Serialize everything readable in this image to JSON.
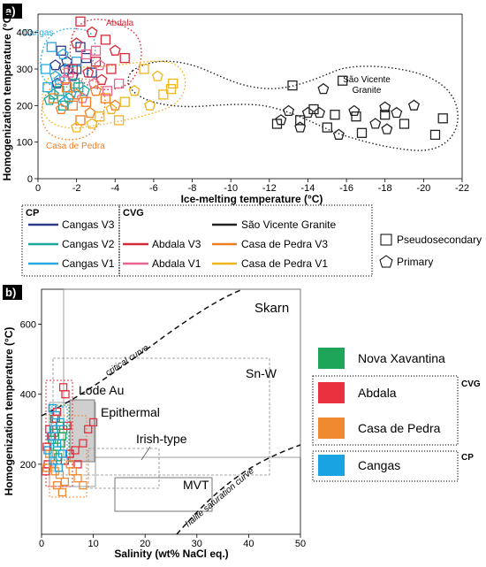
{
  "chart_data": [
    {
      "panel": "a)",
      "type": "scatter",
      "xlabel": "Ice-melting temperature (°C)",
      "ylabel": "Homogenization temperature (°C)",
      "xlim": [
        0,
        -22
      ],
      "ylim": [
        0,
        450
      ],
      "xticks": [
        "0",
        "-2",
        "-4",
        "-6",
        "-8",
        "-10",
        "-12",
        "-14",
        "-16",
        "-18",
        "-20",
        "-22"
      ],
      "yticks": [
        "0",
        "100",
        "200",
        "300",
        "400"
      ],
      "field_labels": {
        "cangas": "Cangas",
        "abdala": "Abdala",
        "casa": "Casa de Pedra",
        "svg": "São Vicente Granite"
      },
      "legend": {
        "cp_title": "CP",
        "cvg_title": "CVG",
        "cp_items": [
          "Cangas V3",
          "Cangas V2",
          "Cangas V1"
        ],
        "cvg_items": [
          "São Vicente Granite",
          "Abdala V3",
          "Casa de Pedra V3",
          "Abdala V1",
          "Casa de Pedra V1"
        ],
        "marker_items": [
          "Pseudosecondary",
          "Primary"
        ]
      },
      "series": [
        {
          "name": "Cangas V3",
          "color": "#2d3a8c",
          "marker": "mixed",
          "points": [
            [
              -1.2,
              350
            ],
            [
              -1.5,
              320
            ],
            [
              -2.0,
              300
            ],
            [
              -1.8,
              280
            ],
            [
              -2.5,
              330
            ],
            [
              -1.0,
              260
            ],
            [
              -2.2,
              360
            ],
            [
              -1.4,
              300
            ],
            [
              -2.8,
              290
            ],
            [
              -0.9,
              310
            ]
          ]
        },
        {
          "name": "Cangas V2",
          "color": "#17a89a",
          "marker": "mixed",
          "points": [
            [
              -1.1,
              240
            ],
            [
              -1.6,
              220
            ],
            [
              -2.1,
              250
            ],
            [
              -0.8,
              230
            ],
            [
              -1.9,
              260
            ],
            [
              -2.4,
              240
            ],
            [
              -1.3,
              200
            ],
            [
              -0.6,
              215
            ]
          ]
        },
        {
          "name": "Cangas V1",
          "color": "#29a9e0",
          "marker": "mixed",
          "points": [
            [
              -0.7,
              360
            ],
            [
              -1.3,
              340
            ],
            [
              -1.6,
              300
            ],
            [
              -0.9,
              280
            ],
            [
              -2.0,
              320
            ],
            [
              -1.1,
              270
            ],
            [
              -0.5,
              250
            ],
            [
              -1.7,
              230
            ],
            [
              -0.4,
              300
            ],
            [
              -1.4,
              210
            ]
          ]
        },
        {
          "name": "Abdala V3",
          "color": "#d62a3a",
          "marker": "mixed",
          "points": [
            [
              -2.2,
              430
            ],
            [
              -2.8,
              400
            ],
            [
              -3.5,
              380
            ],
            [
              -4.0,
              350
            ],
            [
              -3.0,
              320
            ],
            [
              -2.6,
              290
            ],
            [
              -3.8,
              300
            ],
            [
              -2.0,
              370
            ],
            [
              -4.5,
              330
            ],
            [
              -3.3,
              270
            ],
            [
              -1.8,
              300
            ]
          ]
        },
        {
          "name": "Abdala V1",
          "color": "#e8658f",
          "marker": "mixed",
          "points": [
            [
              -2.5,
              340
            ],
            [
              -3.2,
              310
            ],
            [
              -1.6,
              290
            ],
            [
              -2.9,
              260
            ],
            [
              -3.6,
              240
            ],
            [
              -2.3,
              220
            ],
            [
              -4.2,
              260
            ],
            [
              -1.4,
              270
            ],
            [
              -3.0,
              350
            ]
          ]
        },
        {
          "name": "Casa de Pedra V3",
          "color": "#ef7d22",
          "marker": "mixed",
          "points": [
            [
              -1.5,
              250
            ],
            [
              -2.0,
              230
            ],
            [
              -2.5,
              210
            ],
            [
              -3.0,
              240
            ],
            [
              -1.8,
              200
            ],
            [
              -2.7,
              180
            ],
            [
              -3.5,
              220
            ],
            [
              -1.2,
              190
            ],
            [
              -2.2,
              160
            ],
            [
              -4.0,
              200
            ],
            [
              -0.8,
              220
            ]
          ]
        },
        {
          "name": "Casa de Pedra V1",
          "color": "#f1b51c",
          "marker": "mixed",
          "points": [
            [
              -5.5,
              300
            ],
            [
              -6.2,
              280
            ],
            [
              -7.0,
              260
            ],
            [
              -5.0,
              240
            ],
            [
              -4.5,
              210
            ],
            [
              -3.8,
              190
            ],
            [
              -6.5,
              230
            ],
            [
              -2.8,
              150
            ],
            [
              -3.2,
              170
            ],
            [
              -5.8,
              200
            ],
            [
              -4.2,
              160
            ],
            [
              -2.0,
              140
            ],
            [
              -6.9,
              245
            ]
          ]
        },
        {
          "name": "São Vicente Granite",
          "color": "#222222",
          "marker": "mixed",
          "points": [
            [
              -13.2,
              255
            ],
            [
              -14.8,
              245
            ],
            [
              -15.8,
              268
            ],
            [
              -13.0,
              185
            ],
            [
              -13.6,
              160
            ],
            [
              -13.6,
              140
            ],
            [
              -14.3,
              190
            ],
            [
              -14.6,
              180
            ],
            [
              -15.4,
              175
            ],
            [
              -16.4,
              185
            ],
            [
              -16.5,
              170
            ],
            [
              -18.0,
              195
            ],
            [
              -18.0,
              175
            ],
            [
              -18.1,
              135
            ],
            [
              -19.0,
              150
            ],
            [
              -19.5,
              200
            ],
            [
              -21.0,
              165
            ],
            [
              -12.6,
              160
            ],
            [
              -12.4,
              150
            ],
            [
              -14.0,
              180
            ],
            [
              -15.0,
              140
            ],
            [
              -15.6,
              120
            ],
            [
              -16.8,
              125
            ],
            [
              -17.5,
              150
            ],
            [
              -20.6,
              120
            ],
            [
              -18.6,
              180
            ]
          ]
        }
      ]
    },
    {
      "panel": "b)",
      "type": "scatter",
      "xlabel": "Salinity (wt% NaCl eq.)",
      "ylabel": "Homogenization temperature (°C)",
      "xlim": [
        0,
        50
      ],
      "ylim": [
        0,
        700
      ],
      "xticks": [
        "0",
        "10",
        "20",
        "30",
        "40",
        "50"
      ],
      "yticks": [
        "200",
        "400",
        "600"
      ],
      "fields": {
        "skarn": "Skarn",
        "snw": "Sn-W",
        "lode": "Lode Au",
        "epithermal": "Epithermal",
        "irish": "Irish-type",
        "mvt": "MVT",
        "critical": "critical curve",
        "halite": "halite saturation curve"
      },
      "legend": {
        "items": [
          "Nova Xavantina",
          "Abdala",
          "Casa de Pedra",
          "Cangas"
        ],
        "cvg_title": "CVG",
        "cp_title": "CP",
        "colors": [
          "#1fa55a",
          "#e8303f",
          "#f08a30",
          "#19a3e2"
        ]
      },
      "series": [
        {
          "name": "Nova Xavantina",
          "color": "#1fa55a",
          "points": [
            [
              2.0,
              270
            ],
            [
              2.5,
              290
            ],
            [
              3.0,
              250
            ],
            [
              3.5,
              310
            ],
            [
              2.2,
              230
            ],
            [
              3.8,
              260
            ],
            [
              4.2,
              300
            ],
            [
              2.8,
              330
            ],
            [
              3.2,
              220
            ],
            [
              4.0,
              280
            ]
          ]
        },
        {
          "name": "Abdala",
          "color": "#e8303f",
          "points": [
            [
              4.2,
              420
            ],
            [
              4.6,
              400
            ],
            [
              3.0,
              350
            ],
            [
              2.5,
              330
            ],
            [
              1.5,
              300
            ],
            [
              2.0,
              280
            ],
            [
              1.0,
              250
            ],
            [
              5.0,
              310
            ],
            [
              6.5,
              240
            ],
            [
              7.0,
              200
            ],
            [
              8.0,
              260
            ],
            [
              9.0,
              300
            ],
            [
              10.0,
              320
            ],
            [
              1.2,
              200
            ],
            [
              0.8,
              180
            ],
            [
              4.5,
              210
            ],
            [
              5.5,
              230
            ]
          ]
        },
        {
          "name": "Casa de Pedra",
          "color": "#f08a30",
          "points": [
            [
              1.5,
              230
            ],
            [
              2.2,
              200
            ],
            [
              3.5,
              170
            ],
            [
              4.5,
              150
            ],
            [
              4.0,
              120
            ],
            [
              2.6,
              180
            ],
            [
              6.0,
              180
            ],
            [
              7.0,
              160
            ],
            [
              8.0,
              140
            ],
            [
              1.0,
              190
            ],
            [
              3.0,
              140
            ],
            [
              5.5,
              200
            ]
          ]
        },
        {
          "name": "Cangas",
          "color": "#19a3e2",
          "points": [
            [
              2.1,
              360
            ],
            [
              2.8,
              340
            ],
            [
              3.6,
              320
            ],
            [
              2.4,
              300
            ],
            [
              1.8,
              280
            ],
            [
              3.0,
              260
            ],
            [
              1.2,
              240
            ],
            [
              4.0,
              230
            ],
            [
              2.2,
              210
            ],
            [
              3.3,
              190
            ]
          ]
        }
      ]
    }
  ]
}
